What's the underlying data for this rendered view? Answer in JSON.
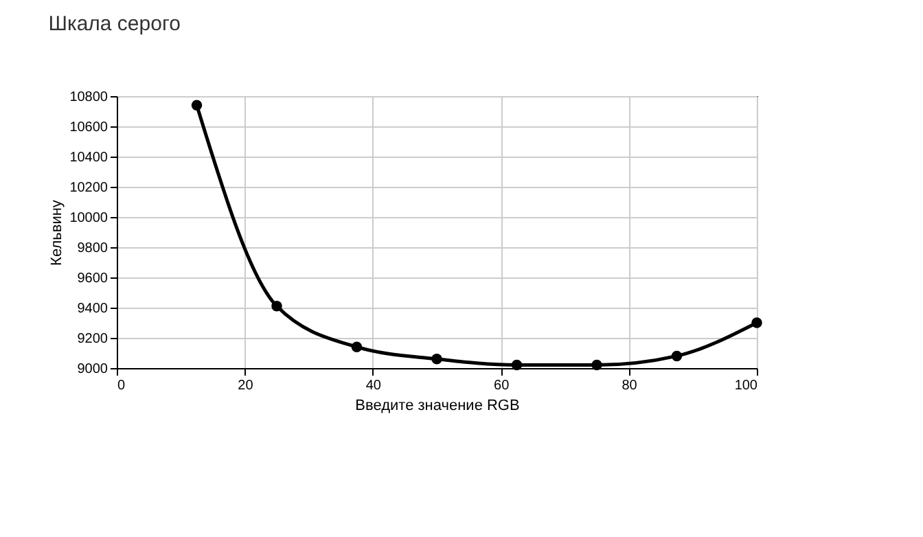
{
  "chart_data": {
    "type": "line",
    "title": "Шкала серого",
    "xlabel": "Введите значение RGB",
    "ylabel": "Кельвину",
    "x": [
      12.5,
      25,
      37.5,
      50,
      62.5,
      75,
      87.5,
      100
    ],
    "series": [
      {
        "color": "#000000",
        "values": [
          10740,
          9410,
          9140,
          9060,
          9020,
          9020,
          9080,
          9300
        ]
      }
    ],
    "xlim": [
      0,
      100
    ],
    "xticks": [
      0,
      20,
      40,
      60,
      80,
      100
    ],
    "ylim": [
      9000,
      10800
    ],
    "yticks": [
      9000,
      9200,
      9400,
      9600,
      9800,
      10000,
      10200,
      10400,
      10600,
      10800
    ],
    "grid": true,
    "marker": "circle",
    "line_style": "solid"
  }
}
